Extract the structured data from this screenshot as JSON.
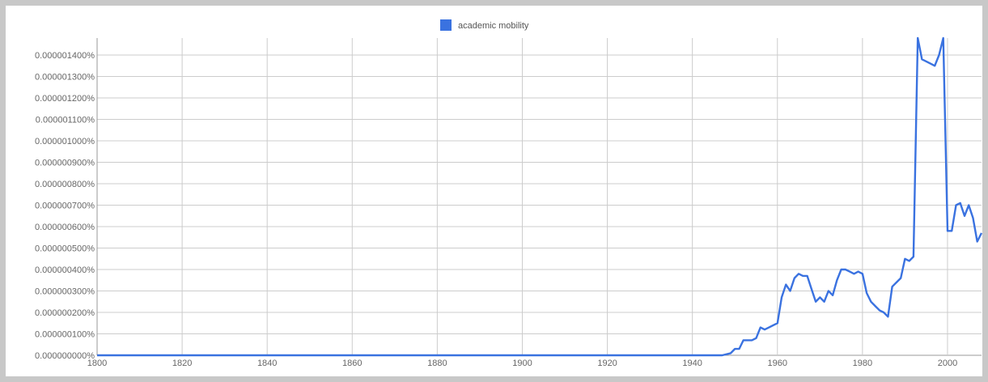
{
  "chart_data": {
    "type": "line",
    "title": "",
    "xlabel": "",
    "ylabel": "",
    "xlim": [
      1800,
      2008
    ],
    "ylim": [
      0,
      1.5e-06
    ],
    "grid": true,
    "legend_position": "top-center",
    "x_ticks": [
      1800,
      1820,
      1840,
      1860,
      1880,
      1900,
      1920,
      1940,
      1960,
      1980,
      2000
    ],
    "x_tick_labels": [
      "1800",
      "1820",
      "1840",
      "1860",
      "1880",
      "1900",
      "1920",
      "1940",
      "1960",
      "1980",
      "2000"
    ],
    "y_ticks": [
      0,
      1e-07,
      2e-07,
      3e-07,
      4e-07,
      5e-07,
      6e-07,
      7e-07,
      8e-07,
      9e-07,
      1e-06,
      1.1e-06,
      1.2e-06,
      1.3e-06,
      1.4e-06
    ],
    "y_tick_labels": [
      "0.000000000%",
      "0.000000100%",
      "0.000000200%",
      "0.000000300%",
      "0.000000400%",
      "0.000000500%",
      "0.000000600%",
      "0.000000700%",
      "0.000000800%",
      "0.000000900%",
      "0.000001000%",
      "0.000001100%",
      "0.000001200%",
      "0.000001300%",
      "0.000001400%"
    ],
    "series": [
      {
        "name": "academic mobility",
        "color": "#3a72e0",
        "points": [
          [
            1800,
            0
          ],
          [
            1947,
            0
          ],
          [
            1949,
            1e-08
          ],
          [
            1950,
            3e-08
          ],
          [
            1951,
            3e-08
          ],
          [
            1952,
            7e-08
          ],
          [
            1954,
            7e-08
          ],
          [
            1955,
            8e-08
          ],
          [
            1956,
            1.3e-07
          ],
          [
            1957,
            1.2e-07
          ],
          [
            1958,
            1.3e-07
          ],
          [
            1959,
            1.4e-07
          ],
          [
            1960,
            1.5e-07
          ],
          [
            1961,
            2.7e-07
          ],
          [
            1962,
            3.3e-07
          ],
          [
            1963,
            3e-07
          ],
          [
            1964,
            3.6e-07
          ],
          [
            1965,
            3.8e-07
          ],
          [
            1966,
            3.7e-07
          ],
          [
            1967,
            3.7e-07
          ],
          [
            1968,
            3.1e-07
          ],
          [
            1969,
            2.5e-07
          ],
          [
            1970,
            2.7e-07
          ],
          [
            1971,
            2.5e-07
          ],
          [
            1972,
            3e-07
          ],
          [
            1973,
            2.8e-07
          ],
          [
            1974,
            3.5e-07
          ],
          [
            1975,
            4e-07
          ],
          [
            1976,
            4e-07
          ],
          [
            1977,
            3.9e-07
          ],
          [
            1978,
            3.8e-07
          ],
          [
            1979,
            3.9e-07
          ],
          [
            1980,
            3.8e-07
          ],
          [
            1981,
            2.9e-07
          ],
          [
            1982,
            2.5e-07
          ],
          [
            1983,
            2.3e-07
          ],
          [
            1984,
            2.1e-07
          ],
          [
            1985,
            2e-07
          ],
          [
            1986,
            1.8e-07
          ],
          [
            1987,
            3.2e-07
          ],
          [
            1988,
            3.4e-07
          ],
          [
            1989,
            3.6e-07
          ],
          [
            1990,
            4.5e-07
          ],
          [
            1991,
            4.4e-07
          ],
          [
            1992,
            4.6e-07
          ],
          [
            1993,
            1.5e-06
          ],
          [
            1994,
            1.38e-06
          ],
          [
            1995,
            1.37e-06
          ],
          [
            1996,
            1.36e-06
          ],
          [
            1997,
            1.35e-06
          ],
          [
            1998,
            1.4e-06
          ],
          [
            1999,
            1.5e-06
          ],
          [
            2000,
            5.8e-07
          ],
          [
            2001,
            5.8e-07
          ],
          [
            2002,
            7e-07
          ],
          [
            2003,
            7.1e-07
          ],
          [
            2004,
            6.5e-07
          ],
          [
            2005,
            7e-07
          ],
          [
            2006,
            6.4e-07
          ],
          [
            2007,
            5.3e-07
          ],
          [
            2008,
            5.7e-07
          ]
        ]
      }
    ]
  }
}
